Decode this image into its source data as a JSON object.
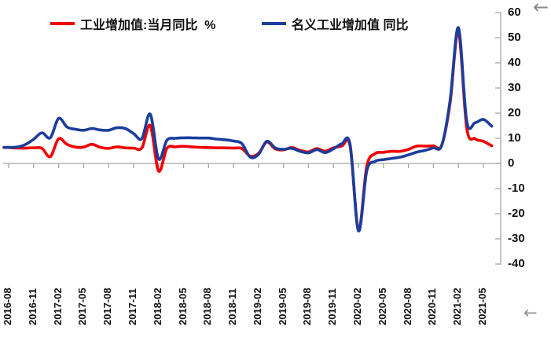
{
  "chart_data": {
    "type": "line",
    "title": "",
    "legend_position": "top",
    "y_axis_side": "right",
    "ylim": [
      -40,
      60
    ],
    "y_ticks": [
      60,
      50,
      40,
      30,
      20,
      10,
      0,
      -10,
      -20,
      -30,
      -40
    ],
    "grid": "zero-baseline-only",
    "x": [
      "2016-08",
      "2016-09",
      "2016-10",
      "2016-11",
      "2016-12",
      "2017-01",
      "2017-02",
      "2017-03",
      "2017-04",
      "2017-05",
      "2017-06",
      "2017-07",
      "2017-08",
      "2017-09",
      "2017-10",
      "2017-11",
      "2017-12",
      "2018-01",
      "2018-02",
      "2018-03",
      "2018-04",
      "2018-05",
      "2018-06",
      "2018-07",
      "2018-08",
      "2018-09",
      "2018-10",
      "2018-11",
      "2018-12",
      "2019-01",
      "2019-02",
      "2019-03",
      "2019-04",
      "2019-05",
      "2019-06",
      "2019-07",
      "2019-08",
      "2019-09",
      "2019-10",
      "2019-11",
      "2019-12",
      "2020-01",
      "2020-02",
      "2020-03",
      "2020-04",
      "2020-05",
      "2020-06",
      "2020-07",
      "2020-08",
      "2020-09",
      "2020-10",
      "2020-11",
      "2020-12",
      "2021-01",
      "2021-02",
      "2021-03",
      "2021-04",
      "2021-05",
      "2021-06"
    ],
    "x_tick_labels": [
      "2016-08",
      "2016-11",
      "2017-02",
      "2017-05",
      "2017-08",
      "2017-11",
      "2018-02",
      "2018-05",
      "2018-08",
      "2018-11",
      "2019-02",
      "2019-05",
      "2019-08",
      "2019-11",
      "2020-02",
      "2020-05",
      "2020-08",
      "2020-11",
      "2021-02",
      "2021-05"
    ],
    "x_tick_every_n_months": 3,
    "series": [
      {
        "name": "工业增加值:当月同比  %",
        "color": "#f00000",
        "values": [
          6.3,
          6.1,
          6.1,
          6.2,
          6.0,
          2.7,
          9.8,
          7.6,
          6.5,
          6.5,
          7.6,
          6.4,
          6.0,
          6.6,
          6.2,
          6.1,
          6.2,
          15.1,
          -3.0,
          6.0,
          6.6,
          6.8,
          6.6,
          6.4,
          6.3,
          6.2,
          6.2,
          6.1,
          5.9,
          2.9,
          4.0,
          8.5,
          5.8,
          5.4,
          6.3,
          5.2,
          4.6,
          5.9,
          4.9,
          6.2,
          6.9,
          6.9,
          -26.5,
          -1.1,
          3.9,
          4.4,
          4.8,
          4.8,
          5.6,
          6.9,
          6.9,
          7.0,
          7.3,
          24.0,
          52.5,
          14.1,
          9.8,
          8.8,
          7.0
        ]
      },
      {
        "name": "名义工业增加值 同比",
        "color": "#1c3d9c",
        "values": [
          6.4,
          6.5,
          7.5,
          9.6,
          12.2,
          10.2,
          17.9,
          14.5,
          13.6,
          13.2,
          13.9,
          13.3,
          13.2,
          14.2,
          13.9,
          11.9,
          9.9,
          19.6,
          1.8,
          9.2,
          10.0,
          10.2,
          10.2,
          10.1,
          10.1,
          9.7,
          9.4,
          8.9,
          7.9,
          2.5,
          3.6,
          8.8,
          6.2,
          5.6,
          6.0,
          4.8,
          4.2,
          5.5,
          4.3,
          5.8,
          7.8,
          7.5,
          -26.8,
          -3.0,
          0.8,
          1.5,
          2.0,
          2.5,
          3.4,
          4.5,
          5.2,
          6.2,
          7.2,
          25.0,
          54.0,
          16.8,
          16.2,
          17.5,
          14.8
        ]
      }
    ],
    "axis_color": "#a6a6a6"
  },
  "icons": {
    "top_right_arrow": "←",
    "bottom_right_arrow": "←"
  }
}
